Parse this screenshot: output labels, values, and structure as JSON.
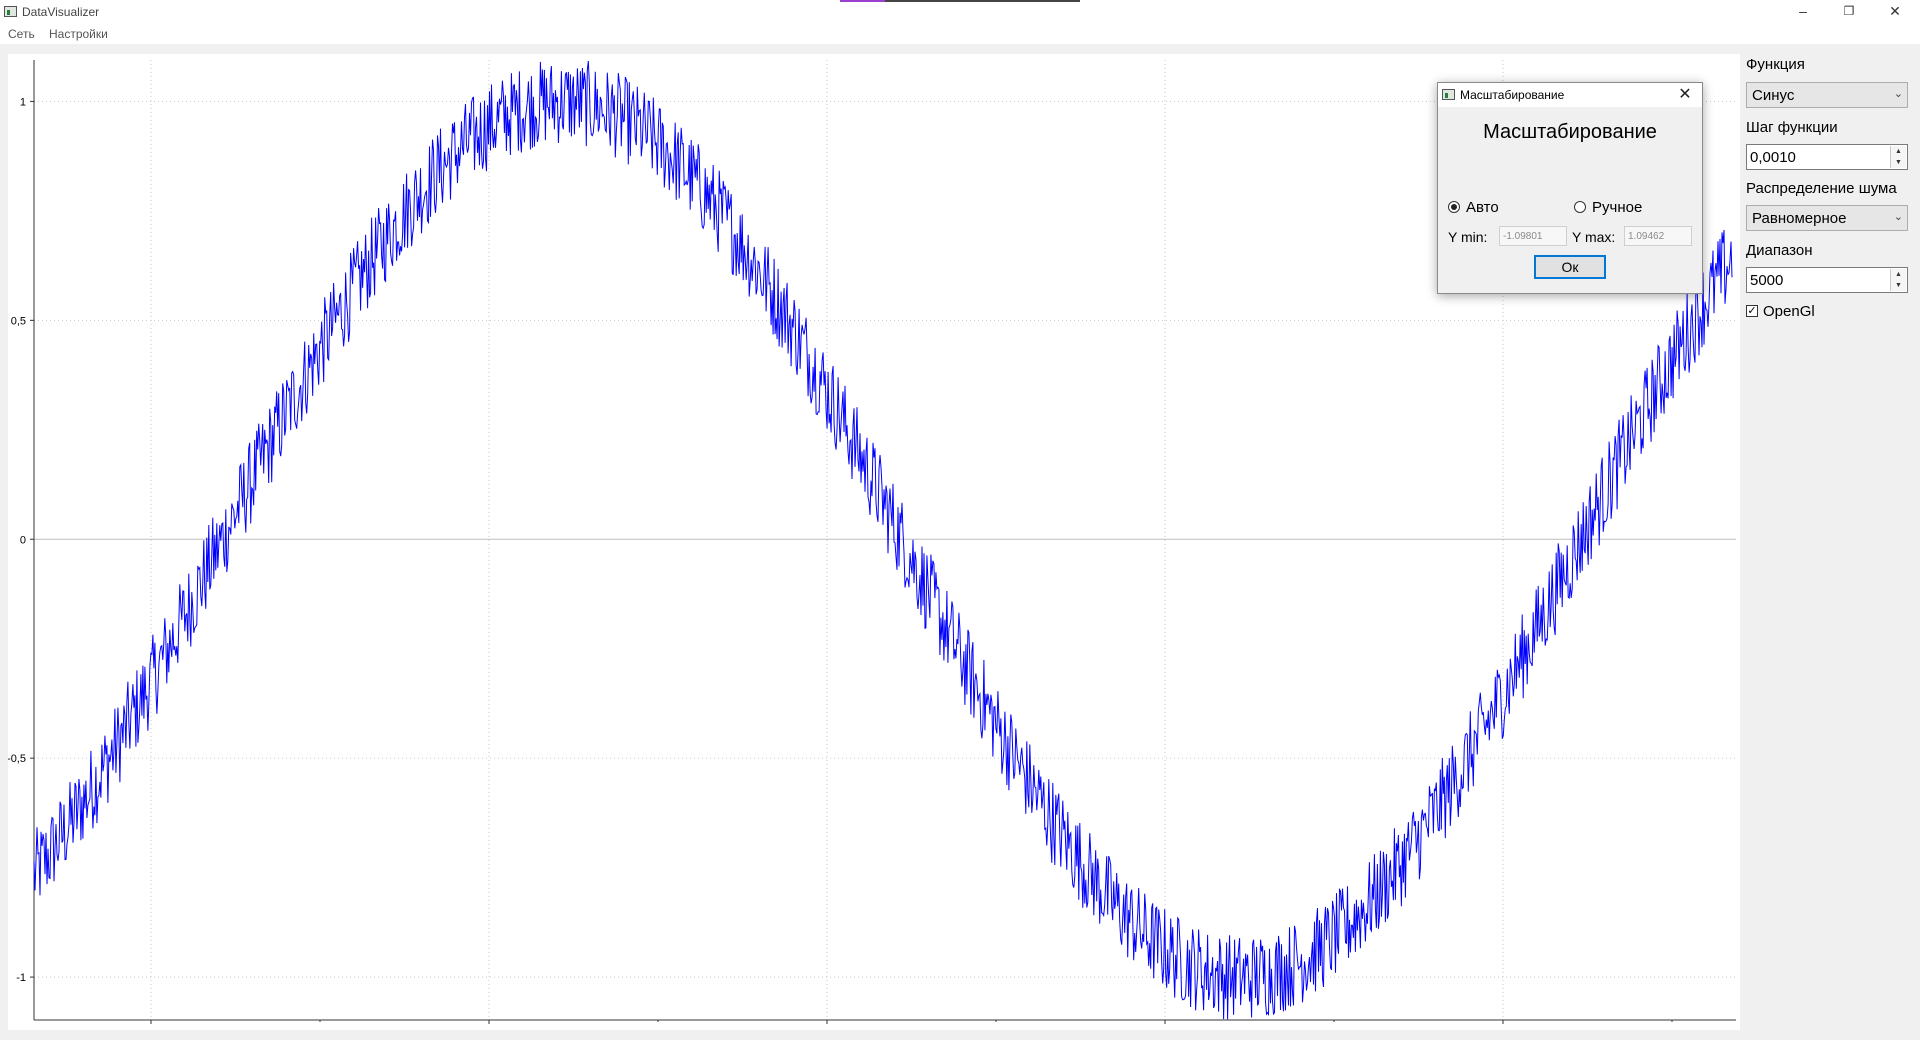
{
  "window": {
    "title": "DataVisualizer",
    "controls": {
      "minimize": "–",
      "restore": "❐",
      "close": "✕"
    }
  },
  "menu": {
    "items": [
      "Сеть",
      "Настройки"
    ]
  },
  "panel": {
    "function_label": "Функция",
    "function_value": "Синус",
    "step_label": "Шаг функции",
    "step_value": "0,0010",
    "noise_label": "Распределение шума",
    "noise_value": "Равномерное",
    "range_label": "Диапазон",
    "range_value": "5000",
    "opengl_label": "OpenGl",
    "opengl_checked": true
  },
  "dialog": {
    "title": "Масштабирование",
    "heading": "Масштабирование",
    "radio_auto": "Авто",
    "radio_manual": "Ручное",
    "selected": "auto",
    "ymin_label": "Y min:",
    "ymin_value": "-1.09801",
    "ymax_label": "Y max:",
    "ymax_value": "1.09462",
    "ok_label": "Ок",
    "close_icon": "✕"
  },
  "chart_data": {
    "type": "line",
    "title": "",
    "xlabel": "",
    "ylabel": "",
    "series": [
      {
        "function": "sin",
        "periods": 1.25,
        "phase_deg": -50,
        "noise": "uniform",
        "noise_amplitude": 0.1,
        "color": "#0000ff"
      }
    ],
    "ylim": [
      -1.09801,
      1.09462
    ],
    "yticks": [
      1,
      0.5,
      0,
      -0.5,
      -1
    ],
    "ytick_labels": [
      "1",
      "0,5",
      "0",
      "-0,5",
      "-1"
    ],
    "x_major_gridlines": 5,
    "grid": true,
    "grid_style": "dotted",
    "legend": "none"
  }
}
